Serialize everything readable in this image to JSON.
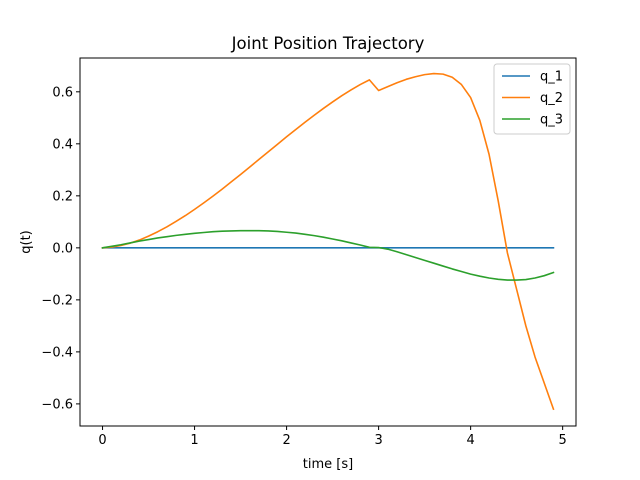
{
  "chart_data": {
    "type": "line",
    "title": "Joint Position Trajectory",
    "xlabel": "time [s]",
    "ylabel": "q(t)",
    "xlim": [
      -0.245,
      5.145
    ],
    "ylim": [
      -0.685,
      0.73
    ],
    "xticks": [
      0,
      1,
      2,
      3,
      4,
      5
    ],
    "xtick_labels": [
      "0",
      "1",
      "2",
      "3",
      "4",
      "5"
    ],
    "yticks": [
      -0.6,
      -0.4,
      -0.2,
      0.0,
      0.2,
      0.4,
      0.6
    ],
    "ytick_labels": [
      "−0.6",
      "−0.4",
      "−0.2",
      "0.0",
      "0.2",
      "0.4",
      "0.6"
    ],
    "grid": false,
    "legend_position": "top-right",
    "x": [
      0,
      0.1,
      0.2,
      0.3,
      0.4,
      0.5,
      0.6,
      0.7,
      0.8,
      0.9,
      1.0,
      1.1,
      1.2,
      1.3,
      1.4,
      1.5,
      1.6,
      1.7,
      1.8,
      1.9,
      2.0,
      2.1,
      2.2,
      2.3,
      2.4,
      2.5,
      2.6,
      2.7,
      2.8,
      2.9,
      3.0,
      3.1,
      3.2,
      3.3,
      3.4,
      3.5,
      3.6,
      3.7,
      3.8,
      3.9,
      4.0,
      4.1,
      4.2,
      4.3,
      4.4,
      4.5,
      4.6,
      4.7,
      4.8,
      4.9
    ],
    "series": [
      {
        "name": "q_1",
        "color": "#1f77b4",
        "values": [
          0,
          0,
          0,
          0,
          0,
          0,
          0,
          0,
          0,
          0,
          0,
          0,
          0,
          0,
          0,
          0,
          0,
          0,
          0,
          0,
          0,
          0,
          0,
          0,
          0,
          0,
          0,
          0,
          0,
          0,
          0,
          0,
          0,
          0,
          0,
          0,
          0,
          0,
          0,
          0,
          0,
          0,
          0,
          0,
          0,
          0,
          0,
          0,
          0,
          0
        ]
      },
      {
        "name": "q_2",
        "color": "#ff7f0e",
        "values": [
          0.0,
          0.003,
          0.009,
          0.018,
          0.03,
          0.045,
          0.062,
          0.081,
          0.102,
          0.124,
          0.148,
          0.173,
          0.199,
          0.226,
          0.254,
          0.282,
          0.311,
          0.34,
          0.369,
          0.398,
          0.427,
          0.455,
          0.483,
          0.51,
          0.536,
          0.561,
          0.585,
          0.607,
          0.628,
          0.646,
          0.605,
          0.62,
          0.635,
          0.648,
          0.658,
          0.666,
          0.67,
          0.668,
          0.656,
          0.628,
          0.578,
          0.49,
          0.36,
          0.18,
          -0.02,
          -0.16,
          -0.3,
          -0.42,
          -0.52,
          -0.62
        ]
      },
      {
        "name": "q_3",
        "color": "#2ca02c",
        "values": [
          0.0,
          0.006,
          0.012,
          0.019,
          0.026,
          0.032,
          0.038,
          0.043,
          0.048,
          0.052,
          0.056,
          0.059,
          0.062,
          0.064,
          0.065,
          0.066,
          0.066,
          0.066,
          0.065,
          0.063,
          0.06,
          0.057,
          0.052,
          0.047,
          0.041,
          0.034,
          0.027,
          0.019,
          0.011,
          0.002,
          0.001,
          -0.005,
          -0.015,
          -0.026,
          -0.037,
          -0.048,
          -0.059,
          -0.07,
          -0.081,
          -0.091,
          -0.101,
          -0.109,
          -0.116,
          -0.121,
          -0.124,
          -0.124,
          -0.122,
          -0.116,
          -0.107,
          -0.095
        ]
      }
    ]
  }
}
